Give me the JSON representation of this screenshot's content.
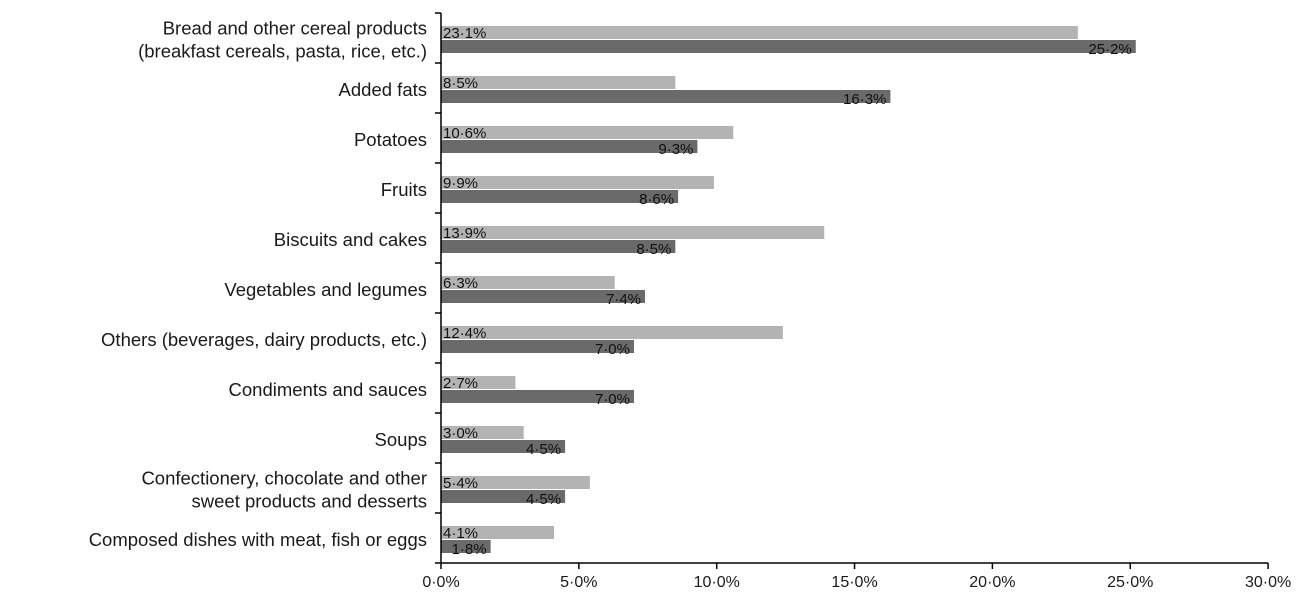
{
  "chart_data": {
    "type": "bar",
    "orientation": "horizontal",
    "categories": [
      [
        "Bread and other cereal products",
        "(breakfast cereals, pasta, rice, etc.)"
      ],
      [
        "Added fats"
      ],
      [
        "Potatoes"
      ],
      [
        "Fruits"
      ],
      [
        "Biscuits and cakes"
      ],
      [
        "Vegetables and legumes"
      ],
      [
        "Others (beverages, dairy products, etc.)"
      ],
      [
        "Condiments and sauces"
      ],
      [
        "Soups"
      ],
      [
        "Confectionery, chocolate and other",
        "sweet products and desserts"
      ],
      [
        "Composed dishes with meat, fish or eggs"
      ]
    ],
    "series": [
      {
        "color": "#b3b3b3",
        "values": [
          23.1,
          8.5,
          10.6,
          9.9,
          13.9,
          6.3,
          12.4,
          2.7,
          3.0,
          5.4,
          4.1
        ],
        "labels": [
          "23·1%",
          "8·5%",
          "10·6%",
          "9·9%",
          "13·9%",
          "6·3%",
          "12·4%",
          "2·7%",
          "3·0%",
          "5·4%",
          "4·1%"
        ]
      },
      {
        "color": "#6a6a6a",
        "values": [
          25.2,
          16.3,
          9.3,
          8.6,
          8.5,
          7.4,
          7.0,
          7.0,
          4.5,
          4.5,
          1.8
        ],
        "labels": [
          "25·2%",
          "16·3%",
          "9·3%",
          "8·6%",
          "8·5%",
          "7·4%",
          "7·0%",
          "7·0%",
          "4·5%",
          "4·5%",
          "1·8%"
        ]
      }
    ],
    "xlim": [
      0,
      30
    ],
    "xticks": [
      0,
      5,
      10,
      15,
      20,
      25,
      30
    ],
    "xtick_labels": [
      "0·0%",
      "5·0%",
      "10·0%",
      "15·0%",
      "20·0%",
      "25·0%",
      "30·0%"
    ],
    "grid": false,
    "legend": "none"
  }
}
